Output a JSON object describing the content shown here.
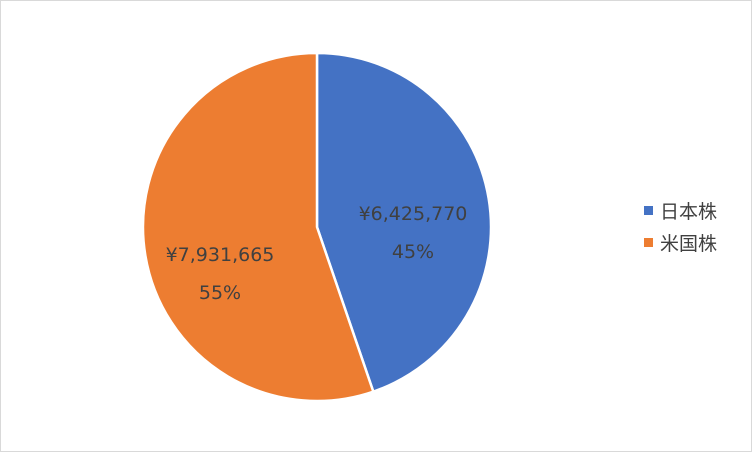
{
  "chart_data": {
    "type": "pie",
    "title": "",
    "slices": [
      {
        "name": "日本株",
        "value": 6425770,
        "value_label": "¥6,425,770",
        "percent_label": "45%",
        "color": "#4472C4"
      },
      {
        "name": "米国株",
        "value": 7931665,
        "value_label": "¥7,931,665",
        "percent_label": "55%",
        "color": "#ED7D31"
      }
    ],
    "legend_position": "right"
  }
}
